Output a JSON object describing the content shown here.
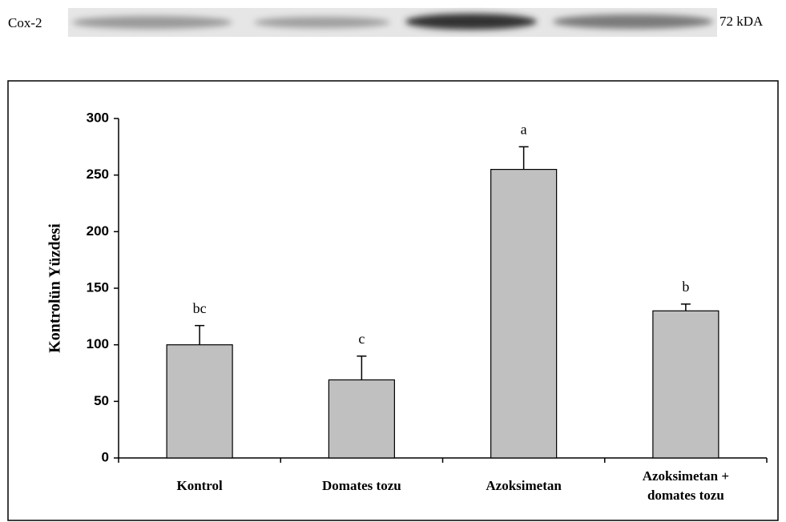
{
  "blot": {
    "label": "Cox-2",
    "marker": "72 kDA"
  },
  "chart_data": {
    "type": "bar",
    "y_label": "Kontrolün Yüzdesi",
    "categories": [
      "Kontrol",
      "Domates tozu",
      "Azoksimetan",
      "Azoksimetan +\ndomates tozu"
    ],
    "values": [
      100,
      69,
      255,
      130
    ],
    "errors": [
      17,
      21,
      20,
      6
    ],
    "annotations": [
      "bc",
      "c",
      "a",
      "b"
    ],
    "color": "#c0c0c0",
    "ylim": [
      0,
      300
    ],
    "yticks": [
      0,
      50,
      100,
      150,
      200,
      250,
      300
    ],
    "grid": false
  }
}
